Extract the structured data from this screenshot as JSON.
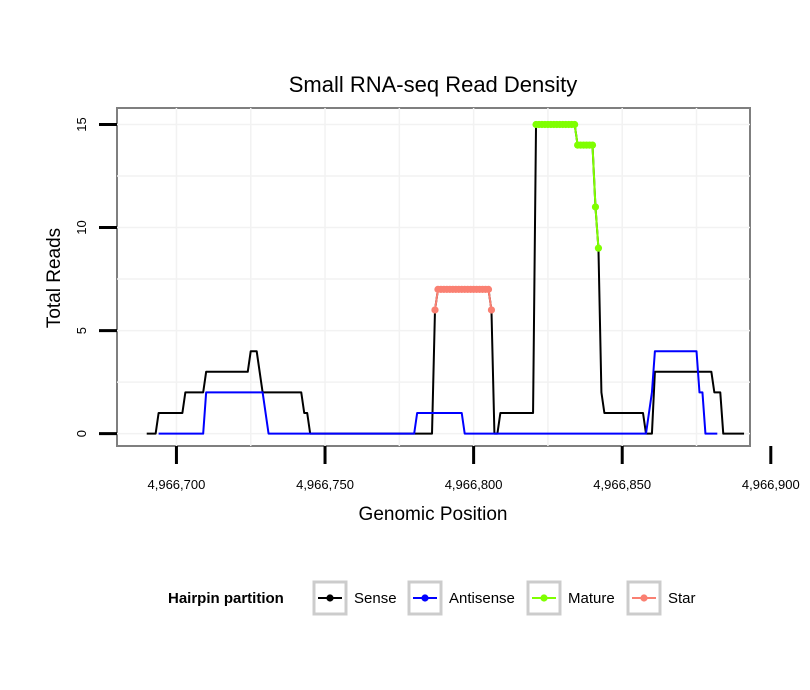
{
  "chart_data": {
    "type": "line",
    "title": "Small RNA-seq Read Density",
    "xlabel": "Genomic Position",
    "ylabel": "Total Reads",
    "xlim": [
      4966680,
      4966893
    ],
    "ylim": [
      -0.6,
      15.8
    ],
    "grid": true,
    "x_ticks": [
      4966700,
      4966750,
      4966800,
      4966850,
      4966900
    ],
    "x_tick_labels": [
      "4,966,700",
      "4,966,750",
      "4,966,800",
      "4,966,850",
      "4,966,900"
    ],
    "y_ticks": [
      0,
      5,
      10,
      15
    ],
    "y_tick_labels": [
      "0",
      "5",
      "10",
      "15"
    ],
    "legend": {
      "title": "Hairpin partition",
      "position": "bottom",
      "entries": [
        {
          "name": "Sense",
          "color": "#000000"
        },
        {
          "name": "Antisense",
          "color": "#0000ff"
        },
        {
          "name": "Mature",
          "color": "#7fff00"
        },
        {
          "name": "Star",
          "color": "#fa8072"
        }
      ]
    },
    "series": [
      {
        "name": "Sense",
        "color": "#000000",
        "points": [
          [
            4966690,
            0
          ],
          [
            4966693,
            0
          ],
          [
            4966694,
            1
          ],
          [
            4966702,
            1
          ],
          [
            4966703,
            2
          ],
          [
            4966709,
            2
          ],
          [
            4966710,
            3
          ],
          [
            4966724,
            3
          ],
          [
            4966725,
            4
          ],
          [
            4966727,
            4
          ],
          [
            4966728,
            3
          ],
          [
            4966729,
            2
          ],
          [
            4966742,
            2
          ],
          [
            4966743,
            1
          ],
          [
            4966744,
            1
          ],
          [
            4966745,
            0
          ],
          [
            4966786,
            0
          ],
          [
            4966787,
            6
          ],
          [
            4966788,
            7
          ],
          [
            4966805,
            7
          ],
          [
            4966806,
            6
          ],
          [
            4966807,
            0
          ],
          [
            4966808,
            0
          ],
          [
            4966809,
            1
          ],
          [
            4966820,
            1
          ],
          [
            4966821,
            15
          ],
          [
            4966834,
            15
          ],
          [
            4966835,
            14
          ],
          [
            4966840,
            14
          ],
          [
            4966841,
            11
          ],
          [
            4966842,
            9
          ],
          [
            4966843,
            2
          ],
          [
            4966844,
            1
          ],
          [
            4966857,
            1
          ],
          [
            4966858,
            0
          ],
          [
            4966860,
            0
          ],
          [
            4966861,
            3
          ],
          [
            4966880,
            3
          ],
          [
            4966881,
            2
          ],
          [
            4966883,
            2
          ],
          [
            4966884,
            0
          ],
          [
            4966891,
            0
          ]
        ]
      },
      {
        "name": "Antisense",
        "color": "#0000ff",
        "points": [
          [
            4966694,
            0
          ],
          [
            4966709,
            0
          ],
          [
            4966710,
            2
          ],
          [
            4966729,
            2
          ],
          [
            4966731,
            0
          ],
          [
            4966780,
            0
          ],
          [
            4966781,
            1
          ],
          [
            4966796,
            1
          ],
          [
            4966797,
            0
          ],
          [
            4966858,
            0
          ],
          [
            4966860,
            2
          ],
          [
            4966861,
            4
          ],
          [
            4966875,
            4
          ],
          [
            4966876,
            2
          ],
          [
            4966877,
            2
          ],
          [
            4966878,
            0
          ],
          [
            4966882,
            0
          ]
        ]
      },
      {
        "name": "Mature",
        "color": "#7fff00",
        "points": [
          [
            4966821,
            15
          ],
          [
            4966822,
            15
          ],
          [
            4966823,
            15
          ],
          [
            4966824,
            15
          ],
          [
            4966825,
            15
          ],
          [
            4966826,
            15
          ],
          [
            4966827,
            15
          ],
          [
            4966828,
            15
          ],
          [
            4966829,
            15
          ],
          [
            4966830,
            15
          ],
          [
            4966831,
            15
          ],
          [
            4966832,
            15
          ],
          [
            4966833,
            15
          ],
          [
            4966834,
            15
          ],
          [
            4966835,
            14
          ],
          [
            4966836,
            14
          ],
          [
            4966837,
            14
          ],
          [
            4966838,
            14
          ],
          [
            4966839,
            14
          ],
          [
            4966840,
            14
          ],
          [
            4966841,
            11
          ],
          [
            4966842,
            9
          ]
        ]
      },
      {
        "name": "Star",
        "color": "#fa8072",
        "points": [
          [
            4966787,
            6
          ],
          [
            4966788,
            7
          ],
          [
            4966789,
            7
          ],
          [
            4966790,
            7
          ],
          [
            4966791,
            7
          ],
          [
            4966792,
            7
          ],
          [
            4966793,
            7
          ],
          [
            4966794,
            7
          ],
          [
            4966795,
            7
          ],
          [
            4966796,
            7
          ],
          [
            4966797,
            7
          ],
          [
            4966798,
            7
          ],
          [
            4966799,
            7
          ],
          [
            4966800,
            7
          ],
          [
            4966801,
            7
          ],
          [
            4966802,
            7
          ],
          [
            4966803,
            7
          ],
          [
            4966804,
            7
          ],
          [
            4966805,
            7
          ],
          [
            4966806,
            6
          ]
        ]
      }
    ]
  }
}
